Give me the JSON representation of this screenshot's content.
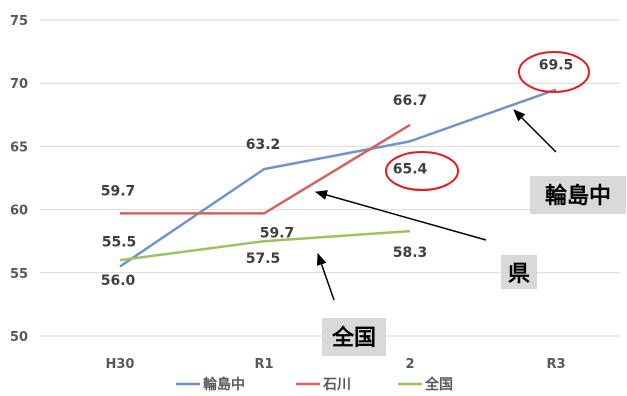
{
  "chart_data": {
    "type": "line",
    "categories": [
      "H30",
      "R1",
      "R2",
      "R3"
    ],
    "visible_category_labels": [
      "H30",
      "R1",
      "2",
      "R3"
    ],
    "y_ticks": [
      50,
      55,
      60,
      65,
      70,
      75
    ],
    "ylim": [
      50,
      75
    ],
    "grid": true,
    "legend": "bottom",
    "series": [
      {
        "name": "輪島中",
        "color": "#6f95c8",
        "values": [
          55.5,
          63.2,
          65.4,
          69.5
        ],
        "labels": [
          "55.5",
          "63.2",
          "65.4",
          "69.5"
        ]
      },
      {
        "name": "石川",
        "color": "#d4625d",
        "values": [
          59.7,
          59.7,
          66.7,
          null
        ],
        "labels": [
          "59.7",
          "59.7",
          "66.7",
          ""
        ]
      },
      {
        "name": "全国",
        "color": "#9bc25f",
        "values": [
          56.0,
          57.5,
          58.3,
          null
        ],
        "labels": [
          "56.0",
          "57.5",
          "58.3",
          ""
        ]
      }
    ],
    "callouts": [
      "輪島中",
      "県",
      "全国"
    ]
  }
}
